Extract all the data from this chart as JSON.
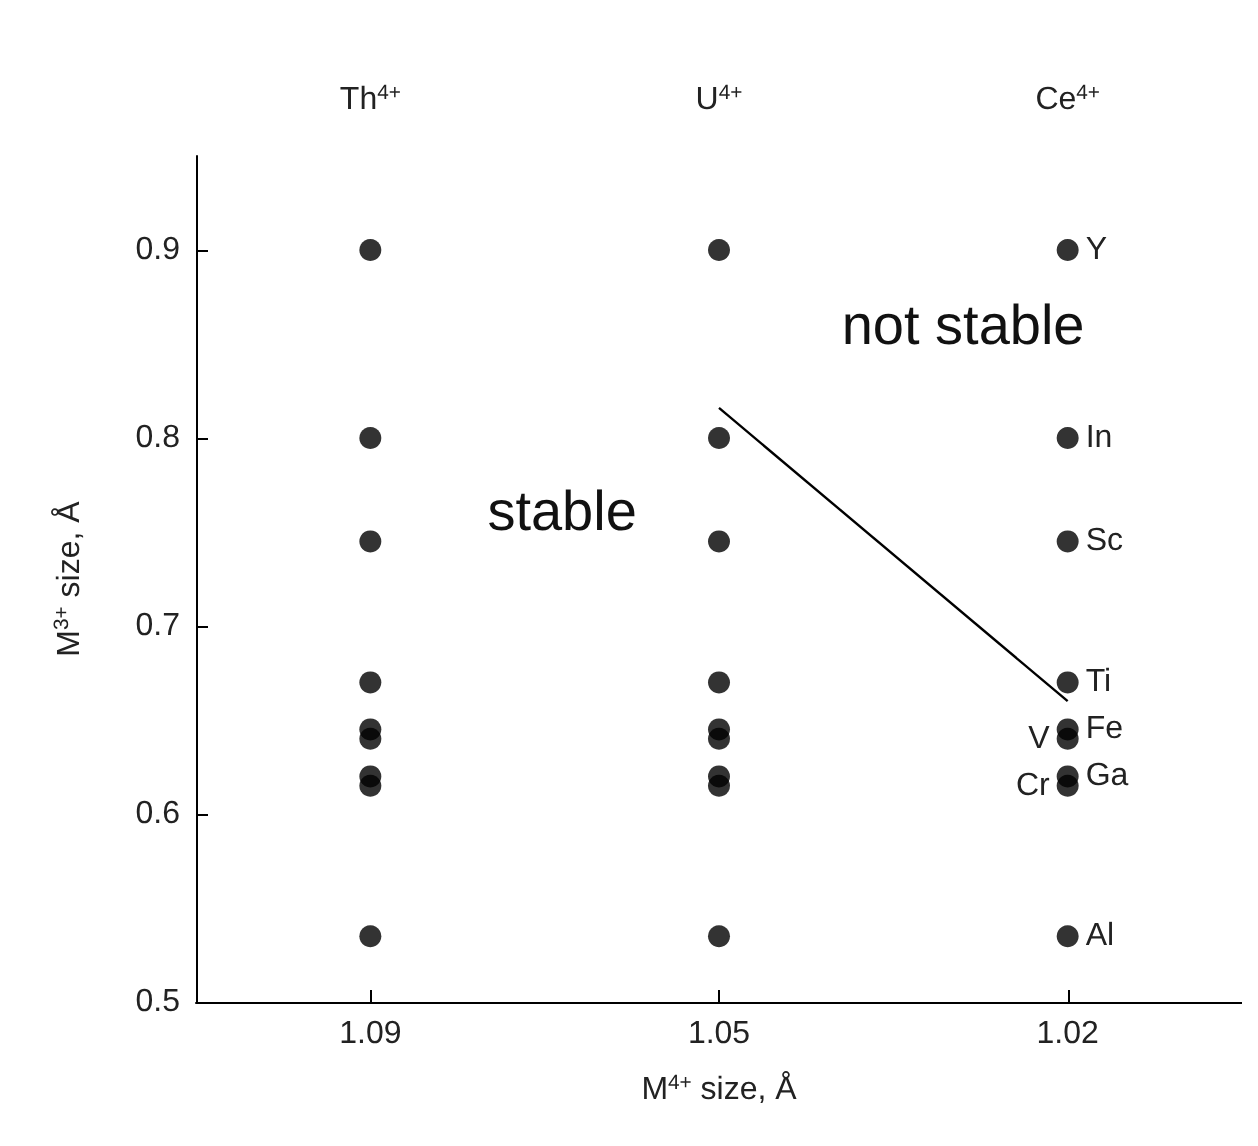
{
  "chart_data": {
    "type": "scatter",
    "xlabel": "M$^{4+}$ size, Å",
    "ylabel": "M$^{3+}$ size, Å",
    "categories": [
      "1.09",
      "1.05",
      "1.02"
    ],
    "ylim": [
      0.5,
      0.95
    ],
    "yticks": [
      0.5,
      0.6,
      0.7,
      0.8,
      0.9
    ],
    "grid": false,
    "marker": "circle",
    "series": [
      {
        "color": "#000000",
        "x": [
          "1.09",
          "1.09",
          "1.09",
          "1.09",
          "1.09",
          "1.09",
          "1.09",
          "1.09",
          "1.09",
          "1.05",
          "1.05",
          "1.05",
          "1.05",
          "1.05",
          "1.05",
          "1.05",
          "1.05",
          "1.05",
          "1.02",
          "1.02",
          "1.02",
          "1.02",
          "1.02",
          "1.02",
          "1.02",
          "1.02",
          "1.02"
        ],
        "values": [
          0.9,
          0.8,
          0.745,
          0.67,
          0.645,
          0.64,
          0.62,
          0.615,
          0.535,
          0.9,
          0.8,
          0.745,
          0.67,
          0.645,
          0.64,
          0.62,
          0.615,
          0.535,
          0.9,
          0.8,
          0.745,
          0.67,
          0.645,
          0.64,
          0.62,
          0.615,
          0.535
        ]
      },
      {
        "type": "line",
        "color": "#000000",
        "line_style": "solid",
        "marker": "none",
        "values": [
          null,
          0.816,
          0.66
        ]
      }
    ],
    "annotations": [
      "Th$^{4+}$",
      "U$^{4+}$",
      "Ce$^{4+}$",
      "stable",
      "not stable",
      {
        "text": "Y",
        "x": "1.02",
        "y": 0.9
      },
      {
        "text": "In",
        "x": "1.02",
        "y": 0.8
      },
      {
        "text": "Sc",
        "x": "1.02",
        "y": 0.745
      },
      {
        "text": "Ti",
        "x": "1.02",
        "y": 0.67
      },
      {
        "text": "Fe",
        "x": "1.02",
        "y": 0.645
      },
      {
        "text": "V",
        "x": "1.02",
        "y": 0.64
      },
      {
        "text": "Ga",
        "x": "1.02",
        "y": 0.62
      },
      {
        "text": "Cr",
        "x": "1.02",
        "y": 0.615
      },
      {
        "text": "Al",
        "x": "1.02",
        "y": 0.535
      }
    ]
  }
}
